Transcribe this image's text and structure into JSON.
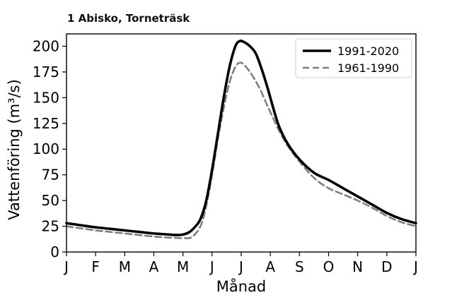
{
  "chart_data": {
    "type": "line",
    "title": "1 Abisko, Torneträsk",
    "xlabel": "Månad",
    "ylabel": "Vattenföring (m³/s)",
    "x_ticks": [
      "J",
      "F",
      "M",
      "A",
      "M",
      "J",
      "J",
      "A",
      "S",
      "O",
      "N",
      "D",
      "J"
    ],
    "y_ticks": [
      0,
      25,
      50,
      75,
      100,
      125,
      150,
      175,
      200
    ],
    "xlim": [
      0,
      12
    ],
    "ylim": [
      0,
      212
    ],
    "grid": false,
    "legend_position": "top-right",
    "series": [
      {
        "name": "1991-2020",
        "color": "#000000",
        "style": "solid",
        "points": [
          [
            0.0,
            28
          ],
          [
            0.5,
            26
          ],
          [
            1.0,
            24
          ],
          [
            1.5,
            22.5
          ],
          [
            2.0,
            21
          ],
          [
            2.5,
            19.5
          ],
          [
            3.0,
            18
          ],
          [
            3.5,
            17
          ],
          [
            3.8,
            16.5
          ],
          [
            4.0,
            17
          ],
          [
            4.2,
            19
          ],
          [
            4.4,
            24
          ],
          [
            4.6,
            32
          ],
          [
            4.8,
            50
          ],
          [
            5.0,
            80
          ],
          [
            5.2,
            115
          ],
          [
            5.4,
            150
          ],
          [
            5.6,
            180
          ],
          [
            5.8,
            200
          ],
          [
            5.95,
            205
          ],
          [
            6.1,
            204
          ],
          [
            6.3,
            200
          ],
          [
            6.5,
            193
          ],
          [
            6.7,
            178
          ],
          [
            6.9,
            160
          ],
          [
            7.1,
            140
          ],
          [
            7.3,
            122
          ],
          [
            7.6,
            105
          ],
          [
            8.0,
            90
          ],
          [
            8.5,
            77
          ],
          [
            9.0,
            70
          ],
          [
            9.5,
            62
          ],
          [
            10.0,
            54
          ],
          [
            10.5,
            46
          ],
          [
            11.0,
            38
          ],
          [
            11.5,
            32
          ],
          [
            12.0,
            28
          ]
        ]
      },
      {
        "name": "1961-1990",
        "color": "#7f7f7f",
        "style": "dashed",
        "points": [
          [
            0.0,
            25
          ],
          [
            0.5,
            23
          ],
          [
            1.0,
            21
          ],
          [
            1.5,
            19.5
          ],
          [
            2.0,
            18
          ],
          [
            2.5,
            16.5
          ],
          [
            3.0,
            15
          ],
          [
            3.5,
            14
          ],
          [
            4.0,
            13.5
          ],
          [
            4.3,
            14.5
          ],
          [
            4.6,
            25
          ],
          [
            4.8,
            45
          ],
          [
            5.0,
            75
          ],
          [
            5.2,
            110
          ],
          [
            5.4,
            140
          ],
          [
            5.6,
            165
          ],
          [
            5.8,
            180
          ],
          [
            5.95,
            184
          ],
          [
            6.1,
            182
          ],
          [
            6.3,
            175
          ],
          [
            6.5,
            166
          ],
          [
            6.7,
            155
          ],
          [
            6.9,
            142
          ],
          [
            7.1,
            130
          ],
          [
            7.3,
            118
          ],
          [
            7.6,
            103
          ],
          [
            8.0,
            88
          ],
          [
            8.5,
            72
          ],
          [
            9.0,
            62
          ],
          [
            9.5,
            56
          ],
          [
            10.0,
            50
          ],
          [
            10.5,
            43
          ],
          [
            11.0,
            35
          ],
          [
            11.5,
            29
          ],
          [
            12.0,
            25
          ]
        ]
      }
    ]
  }
}
